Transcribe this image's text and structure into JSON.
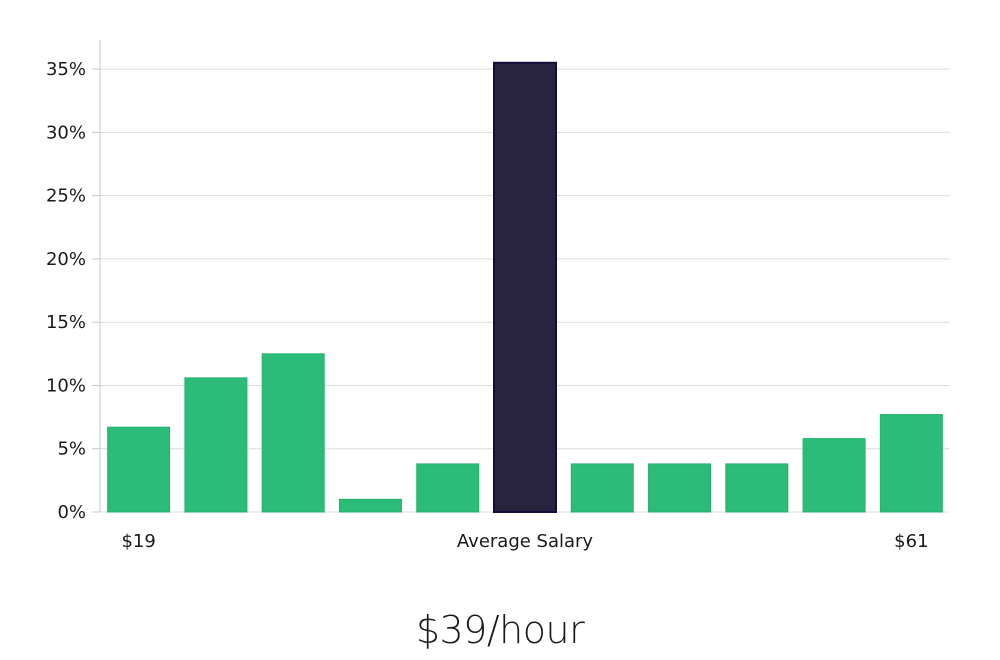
{
  "chart_data": {
    "type": "bar",
    "values": [
      6.7,
      10.6,
      12.5,
      1.0,
      3.8,
      35.5,
      3.8,
      3.8,
      3.8,
      5.8,
      7.7
    ],
    "highlight_index": 5,
    "bar_labels": [
      {
        "index": 0,
        "text": "$19"
      },
      {
        "index": 5,
        "text": "Average Salary"
      },
      {
        "index": 10,
        "text": "$61"
      }
    ],
    "yticks": [
      0,
      5,
      10,
      15,
      20,
      25,
      30,
      35
    ],
    "ytick_labels": [
      "0%",
      "5%",
      "10%",
      "15%",
      "20%",
      "25%",
      "30%",
      "35%"
    ],
    "ylim": [
      0,
      37.3
    ],
    "grid": true,
    "colors": {
      "bar": "#2bbd77",
      "highlight": "#28243f",
      "highlight_edge": "#12103a",
      "grid": "#dcdcdc",
      "axis": "#c8c8c8"
    }
  },
  "headline": "$39/hour"
}
